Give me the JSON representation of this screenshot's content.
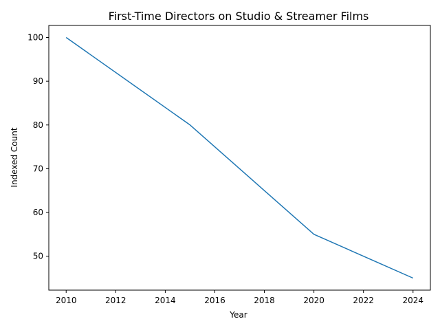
{
  "chart_data": {
    "type": "line",
    "title": "First-Time Directors on Studio & Streamer Films",
    "xlabel": "Year",
    "ylabel": "Indexed Count",
    "x": [
      2010,
      2015,
      2020,
      2024
    ],
    "series": [
      {
        "values": [
          100,
          80,
          55,
          45
        ],
        "color": "#1f77b4"
      }
    ],
    "xlim": [
      2009.3,
      2024.7
    ],
    "ylim": [
      42.25,
      102.75
    ],
    "xticks": [
      2010,
      2012,
      2014,
      2016,
      2018,
      2020,
      2022,
      2024
    ],
    "yticks": [
      50,
      60,
      70,
      80,
      90,
      100
    ],
    "grid": false,
    "legend": "none"
  }
}
